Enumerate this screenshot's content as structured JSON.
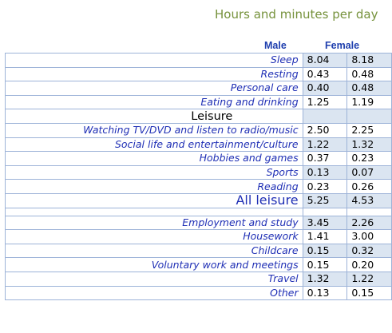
{
  "title": "Hours and minutes per day",
  "columns": {
    "male": "Male",
    "female": "Female"
  },
  "rows": [
    {
      "label": "Sleep",
      "male": "8.04",
      "female": "8.18",
      "kind": "item",
      "shade": true
    },
    {
      "label": "Resting",
      "male": "0.43",
      "female": "0.48",
      "kind": "item",
      "shade": false
    },
    {
      "label": "Personal care",
      "male": "0.40",
      "female": "0.48",
      "kind": "item",
      "shade": true
    },
    {
      "label": "Eating and drinking",
      "male": "1.25",
      "female": "1.19",
      "kind": "item",
      "shade": false
    },
    {
      "label": "Leisure",
      "male": "",
      "female": "",
      "kind": "section",
      "shade": true
    },
    {
      "label": "Watching TV/DVD and listen to radio/music",
      "male": "2.50",
      "female": "2.25",
      "kind": "item",
      "shade": false
    },
    {
      "label": "Social life and entertainment/culture",
      "male": "1.22",
      "female": "1.32",
      "kind": "item",
      "shade": true
    },
    {
      "label": "Hobbies and games",
      "male": "0.37",
      "female": "0.23",
      "kind": "item",
      "shade": false
    },
    {
      "label": "Sports",
      "male": "0.13",
      "female": "0.07",
      "kind": "item",
      "shade": true
    },
    {
      "label": "Reading",
      "male": "0.23",
      "female": "0.26",
      "kind": "item",
      "shade": false
    },
    {
      "label": "All leisure",
      "male": "5.25",
      "female": "4.53",
      "kind": "total",
      "shade": true
    },
    {
      "label": "",
      "male": "",
      "female": "",
      "kind": "blank",
      "shade": false
    },
    {
      "label": "Employment and study",
      "male": "3.45",
      "female": "2.26",
      "kind": "item",
      "shade": true
    },
    {
      "label": "Housework",
      "male": "1.41",
      "female": "3.00",
      "kind": "item",
      "shade": false
    },
    {
      "label": "Childcare",
      "male": "0.15",
      "female": "0.32",
      "kind": "item",
      "shade": true
    },
    {
      "label": "Voluntary work and meetings",
      "male": "0.15",
      "female": "0.20",
      "kind": "item",
      "shade": false
    },
    {
      "label": "Travel",
      "male": "1.32",
      "female": "1.22",
      "kind": "item",
      "shade": true
    },
    {
      "label": "Other",
      "male": "0.13",
      "female": "0.15",
      "kind": "item",
      "shade": false
    }
  ],
  "colors": {
    "title": "#76923c",
    "label": "#1f2fb5",
    "header": "#1f3fae",
    "shade": "#dbe5f1",
    "border": "#9db3d8"
  }
}
